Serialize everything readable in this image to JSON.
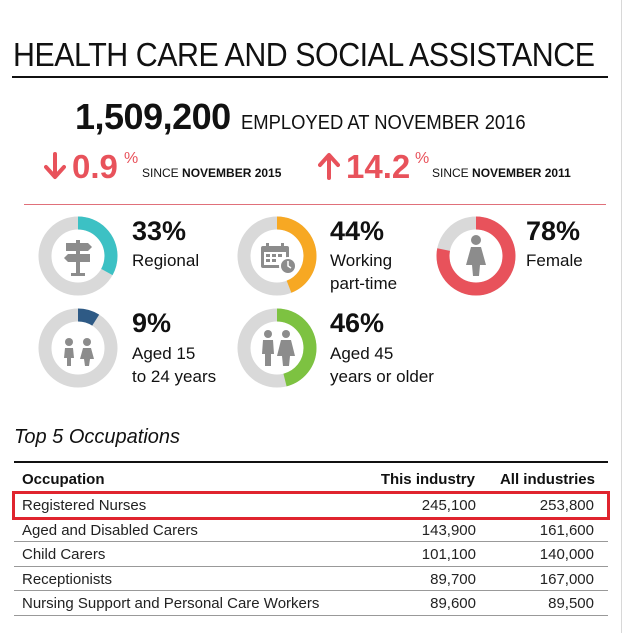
{
  "title": "HEALTH CARE AND SOCIAL ASSISTANCE",
  "employed": {
    "value": "1,509,200",
    "label": "EMPLOYED AT NOVEMBER 2016"
  },
  "changes": [
    {
      "direction": "down",
      "value": "0.9",
      "unit": "%",
      "since_prefix": "SINCE",
      "since_period": "NOVEMBER 2015"
    },
    {
      "direction": "up",
      "value": "14.2",
      "unit": "%",
      "since_prefix": "SINCE",
      "since_period": "NOVEMBER 2011"
    }
  ],
  "stats": [
    {
      "percent": 33,
      "value": "33%",
      "line1": "Regional",
      "line2": "",
      "icon": "signpost-icon",
      "color": "#3cc1c4"
    },
    {
      "percent": 44,
      "value": "44%",
      "line1": "Working",
      "line2": "part-time",
      "icon": "calendar-clock-icon",
      "color": "#f7a823"
    },
    {
      "percent": 78,
      "value": "78%",
      "line1": "Female",
      "line2": "",
      "icon": "female-person-icon",
      "color": "#e8525b"
    },
    {
      "percent": 9,
      "value": "9%",
      "line1": "Aged 15",
      "line2": "to 24 years",
      "icon": "young-people-icon",
      "color": "#2e5a85"
    },
    {
      "percent": 46,
      "value": "46%",
      "line1": "Aged 45",
      "line2": "years or older",
      "icon": "older-people-icon",
      "color": "#7dc241"
    }
  ],
  "occupations": {
    "heading": "Top 5 Occupations",
    "columns": [
      "Occupation",
      "This industry",
      "All industries"
    ],
    "rows": [
      {
        "name": "Registered Nurses",
        "this_industry": "245,100",
        "all_industries": "253,800",
        "highlighted": true
      },
      {
        "name": "Aged and Disabled Carers",
        "this_industry": "143,900",
        "all_industries": "161,600"
      },
      {
        "name": "Child Carers",
        "this_industry": "101,100",
        "all_industries": "140,000"
      },
      {
        "name": "Receptionists",
        "this_industry": "89,700",
        "all_industries": "167,000"
      },
      {
        "name": "Nursing Support and Personal Care Workers",
        "this_industry": "89,600",
        "all_industries": "89,500"
      }
    ]
  },
  "colors": {
    "accent_red": "#e8525b",
    "ring_bg": "#d9d9d9",
    "icon_grey": "#8c8c8c",
    "highlight_box": "#e0242e"
  }
}
